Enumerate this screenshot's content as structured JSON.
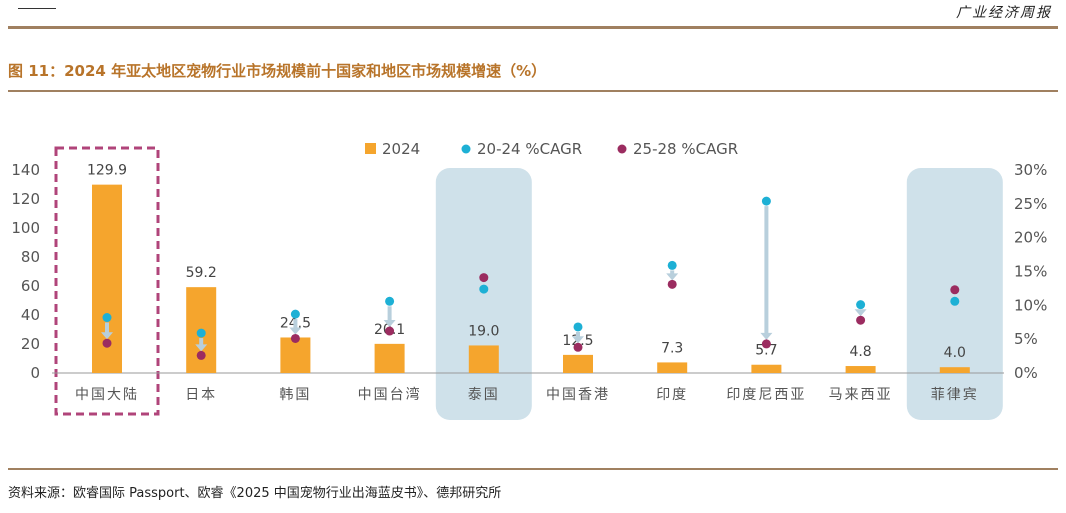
{
  "header": {
    "brand": "广业经济周报"
  },
  "figure": {
    "title": "图 11：2024 年亚太地区宠物行业市场规模前十国家和地区市场规模增速（%）"
  },
  "source": "资料来源：欧睿国际 Passport、欧睿《2025 中国宠物行业出海蓝皮书》、德邦研究所",
  "colors": {
    "bar": "#f5a52d",
    "cagr2024": "#1db0d5",
    "cagr2528": "#9b2c60",
    "highlight": "#cfe1ea",
    "dashed": "#b0447a",
    "arrow": "#b8cfdc"
  },
  "chart_data": {
    "type": "bar",
    "categories": [
      "中国大陆",
      "日本",
      "韩国",
      "中国台湾",
      "泰国",
      "中国香港",
      "印度",
      "印度尼西亚",
      "马来西亚",
      "菲律宾"
    ],
    "series": [
      {
        "name": "2024",
        "type": "bar",
        "axis": "left",
        "values": [
          129.9,
          59.2,
          24.5,
          20.1,
          19.0,
          12.5,
          7.3,
          5.7,
          4.8,
          4.0
        ],
        "labels": [
          "129.9",
          "59.2",
          "24.5",
          "20.1",
          "19.0",
          "12.5",
          "7.3",
          "5.7",
          "4.8",
          "4.0"
        ]
      },
      {
        "name": "20-24 %CAGR",
        "type": "scatter",
        "axis": "right",
        "values": [
          8.2,
          5.9,
          8.7,
          10.6,
          12.4,
          6.8,
          15.9,
          25.4,
          10.1,
          10.6
        ]
      },
      {
        "name": "25-28 %CAGR",
        "type": "scatter",
        "axis": "right",
        "values": [
          4.4,
          2.6,
          5.1,
          6.2,
          14.1,
          3.8,
          13.1,
          4.3,
          7.8,
          12.3
        ]
      }
    ],
    "ylim": [
      0,
      140
    ],
    "yticks": [
      "0",
      "20",
      "40",
      "60",
      "80",
      "100",
      "120",
      "140"
    ],
    "y2lim": [
      0,
      30
    ],
    "y2ticks": [
      "0%",
      "5%",
      "10%",
      "15%",
      "20%",
      "25%",
      "30%"
    ],
    "legend_position": "top",
    "highlight_boxes": [
      "中国大陆",
      "泰国",
      "菲律宾"
    ]
  }
}
